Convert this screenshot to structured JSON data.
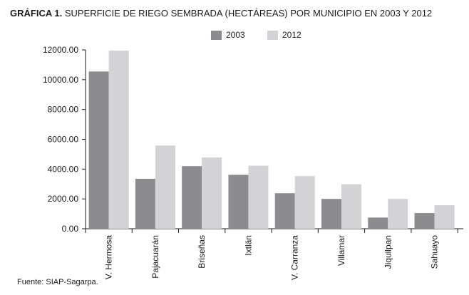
{
  "chart_data": {
    "type": "bar",
    "title_prefix": "GRÁFICA 1.",
    "title": "SUPERFICIE DE RIEGO SEMBRADA (HECTÁREAS) POR MUNICIPIO EN 2003 Y 2012",
    "categories": [
      "V. Hermosa",
      "Pajacuarán",
      "Briseñas",
      "Ixtlán",
      "V. Carranza",
      "Villamar",
      "Jiquilpan",
      "Sahuayo"
    ],
    "series": [
      {
        "name": "2003",
        "values": [
          10550,
          3350,
          4200,
          3620,
          2380,
          2000,
          750,
          1050
        ],
        "color": "#8c8c8e"
      },
      {
        "name": "2012",
        "values": [
          11950,
          5580,
          4780,
          4230,
          3530,
          2990,
          2000,
          1580
        ],
        "color": "#d3d3d5"
      }
    ],
    "ylim": [
      0,
      12000
    ],
    "yticks": [
      "0.00",
      "2000.00",
      "4000.00",
      "6000.00",
      "8000.00",
      "10000.00",
      "12000.00"
    ],
    "ytick_values": [
      0,
      2000,
      4000,
      6000,
      8000,
      10000,
      12000
    ],
    "legend_position": "top-center",
    "grid": false,
    "source": "Fuente: SIAP-Sagarpa."
  }
}
